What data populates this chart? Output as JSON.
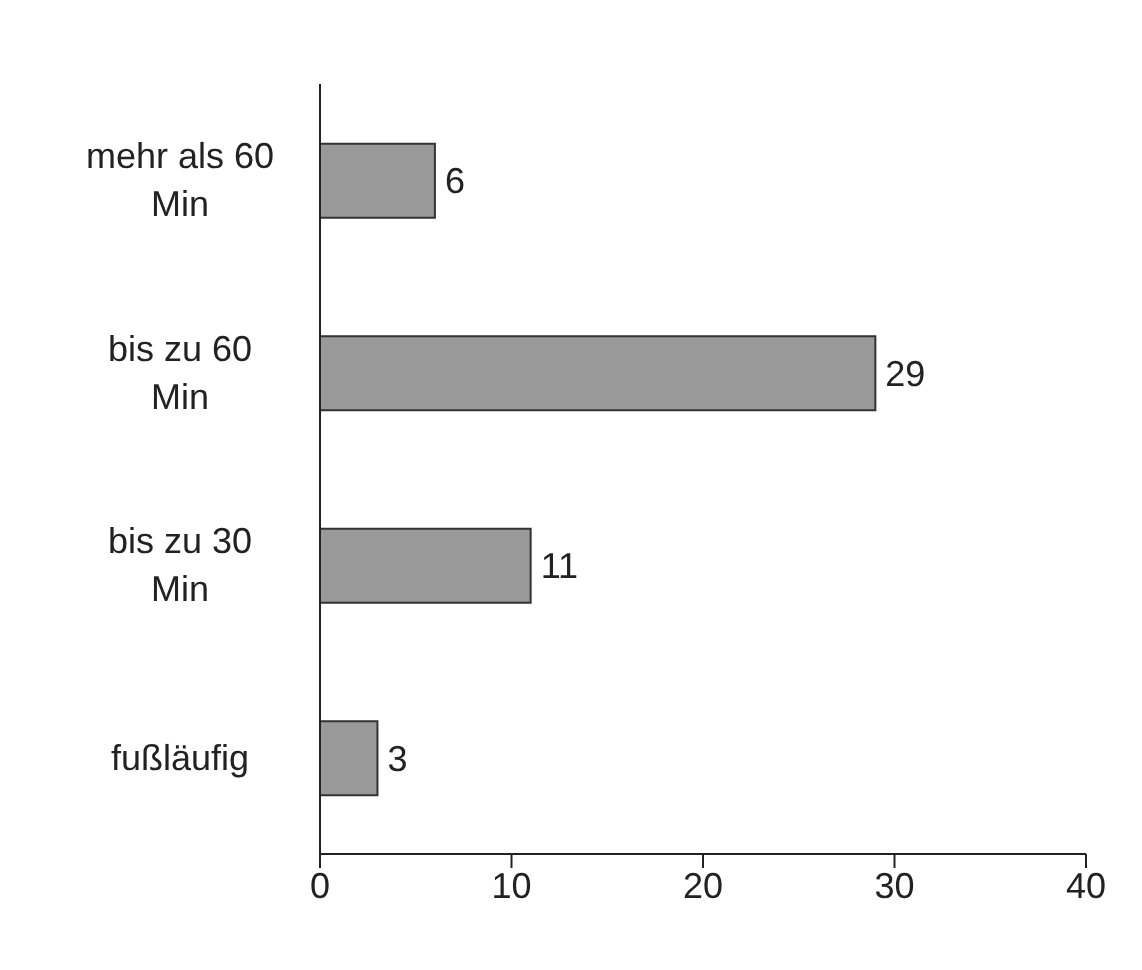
{
  "chart_data": {
    "type": "bar",
    "orientation": "horizontal",
    "categories": [
      "mehr als 60 Min",
      "bis zu 60 Min",
      "bis zu 30 Min",
      "fußläufig"
    ],
    "values": [
      6,
      29,
      11,
      3
    ],
    "color": "#999999",
    "xlim": [
      0,
      40
    ],
    "xticks": [
      0,
      10,
      20,
      30,
      40
    ],
    "grid": false,
    "legend": false,
    "data_labels": true
  }
}
